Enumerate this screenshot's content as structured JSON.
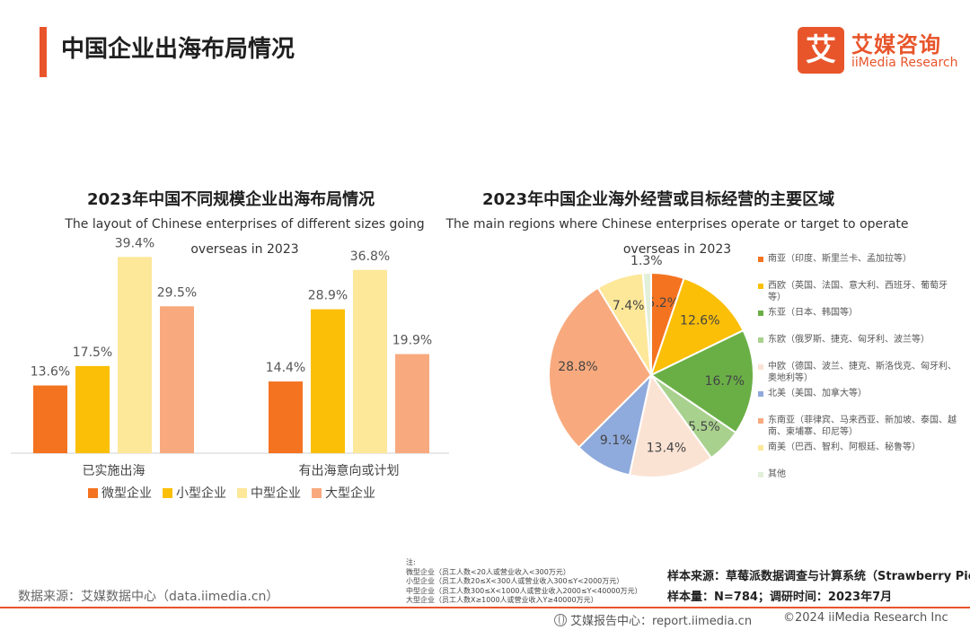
{
  "page": {
    "title": "中国企业出海布局情况",
    "logo": {
      "mark": "艾",
      "cn": "艾媒咨询",
      "en": "iiMedia Research"
    },
    "accent_color": "#e8552b"
  },
  "chart_data": [
    {
      "type": "bar",
      "title": "2023年中国不同规模企业出海布局情况",
      "subtitle_line1": "The layout of Chinese enterprises of different sizes going",
      "subtitle_line2": "overseas in 2023",
      "categories": [
        "已实施出海",
        "有出海意向或计划"
      ],
      "series": [
        {
          "name": "微型企业",
          "color": "#f47320",
          "values": [
            13.6,
            14.4
          ]
        },
        {
          "name": "小型企业",
          "color": "#fbbf07",
          "values": [
            17.5,
            28.9
          ]
        },
        {
          "name": "中型企业",
          "color": "#fde799",
          "values": [
            39.4,
            36.8
          ]
        },
        {
          "name": "大型企业",
          "color": "#f8aa7e",
          "values": [
            29.5,
            19.9
          ]
        }
      ],
      "value_format": "%",
      "legend_position": "bottom"
    },
    {
      "type": "pie",
      "title": "2023年中国企业海外经营或目标经营的主要区域",
      "subtitle_line1": "The main regions where Chinese enterprises operate or target to operate",
      "subtitle_line2": "overseas in 2023",
      "slices": [
        {
          "label": "南亚（印度、斯里兰卡、孟加拉等）",
          "value": 5.2,
          "color": "#f47320"
        },
        {
          "label": "西欧（英国、法国、意大利、西班牙、葡萄牙等）",
          "value": 12.6,
          "color": "#fbbf07"
        },
        {
          "label": "东亚（日本、韩国等）",
          "value": 16.7,
          "color": "#6aaf46"
        },
        {
          "label": "东欧（俄罗斯、捷克、匈牙利、波兰等）",
          "value": 5.5,
          "color": "#a9d18e"
        },
        {
          "label": "中欧（德国、波兰、捷克、斯洛伐克、匈牙利、奥地利等）",
          "value": 13.4,
          "color": "#fbe3d4"
        },
        {
          "label": "北美（美国、加拿大等）",
          "value": 9.1,
          "color": "#8faadc"
        },
        {
          "label": "东南亚（菲律宾、马来西亚、新加坡、泰国、越南、柬埔寨、印尼等）",
          "value": 28.8,
          "color": "#f8aa7e"
        },
        {
          "label": "南美（巴西、智利、阿根廷、秘鲁等）",
          "value": 7.4,
          "color": "#fde799"
        },
        {
          "label": "其他",
          "value": 1.3,
          "color": "#e2efd9"
        }
      ],
      "value_format": "%",
      "legend_position": "right"
    }
  ],
  "footer": {
    "source": "数据来源：艾媒数据中心（data.iimedia.cn）",
    "notes": [
      "注:",
      "微型企业（员工人数<20人或营业收入<300万元）",
      "小型企业（员工人数20≤X<300人或营业收入300≤Y<2000万元）",
      "中型企业（员工人数300≤X<1000人或营业收入2000≤Y<40000万元）",
      "大型企业（员工人数X≥1000人或营业收入Y≥40000万元）"
    ],
    "sample_source": "样本来源：草莓派数据调查与计算系统（Strawberry Pie）",
    "sample_size": "样本量：N=784；调研时间：2023年7月",
    "report_center": "艾媒报告中心：report.iimedia.cn",
    "copyright": "©2024  iiMedia Research  Inc"
  }
}
